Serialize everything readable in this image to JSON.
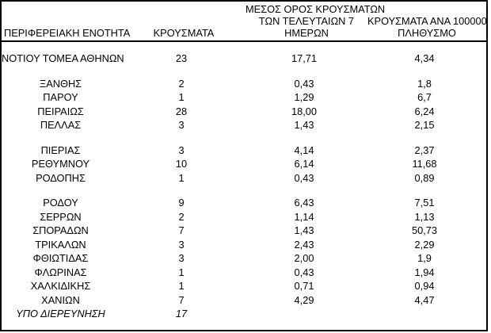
{
  "colors": {
    "background": "#ffffff",
    "text": "#000000",
    "border": "#000000"
  },
  "table": {
    "header": {
      "region": "ΠΕΡΙΦΕΡΕΙΑΚΗ ΕΝΟΤΗΤΑ",
      "cases": "ΚΡΟΥΣΜΑΤΑ",
      "avg7_lines": [
        "ΜΕΣΟΣ ΟΡΟΣ ΚΡΟΥΣΜΑΤΩΝ",
        "ΤΩΝ ΤΕΛΕΥΤΑΙΩΝ 7",
        "ΗΜΕΡΩΝ"
      ],
      "per100k_lines": [
        "ΚΡΟΥΣΜΑΤΑ ΑΝΑ 100000",
        "ΠΛΗΘΥΣΜΟ"
      ]
    },
    "groups": [
      {
        "rows": [
          {
            "region": "ΝΟΤΙΟΥ ΤΟΜΕΑ ΑΘΗΝΩΝ",
            "cases": "23",
            "avg7": "17,71",
            "per100k": "4,34",
            "italic": false
          }
        ]
      },
      {
        "rows": [
          {
            "region": "ΞΑΝΘΗΣ",
            "cases": "2",
            "avg7": "0,43",
            "per100k": "1,8",
            "italic": false
          },
          {
            "region": "ΠΑΡΟΥ",
            "cases": "1",
            "avg7": "1,29",
            "per100k": "6,7",
            "italic": false
          },
          {
            "region": "ΠΕΙΡΑΙΩΣ",
            "cases": "28",
            "avg7": "18,00",
            "per100k": "6,24",
            "italic": false
          },
          {
            "region": "ΠΕΛΛΑΣ",
            "cases": "3",
            "avg7": "1,43",
            "per100k": "2,15",
            "italic": false
          }
        ]
      },
      {
        "rows": [
          {
            "region": "ΠΙΕΡΙΑΣ",
            "cases": "3",
            "avg7": "4,14",
            "per100k": "2,37",
            "italic": false
          },
          {
            "region": "ΡΕΘΥΜΝΟΥ",
            "cases": "10",
            "avg7": "6,14",
            "per100k": "11,68",
            "italic": false
          },
          {
            "region": "ΡΟΔΟΠΗΣ",
            "cases": "1",
            "avg7": "0,43",
            "per100k": "0,89",
            "italic": false
          }
        ]
      },
      {
        "rows": [
          {
            "region": "ΡΟΔΟΥ",
            "cases": "9",
            "avg7": "6,43",
            "per100k": "7,51",
            "italic": false
          },
          {
            "region": "ΣΕΡΡΩΝ",
            "cases": "2",
            "avg7": "1,14",
            "per100k": "1,13",
            "italic": false
          },
          {
            "region": "ΣΠΟΡΑΔΩΝ",
            "cases": "7",
            "avg7": "1,43",
            "per100k": "50,73",
            "italic": false
          },
          {
            "region": "ΤΡΙΚΑΛΩΝ",
            "cases": "3",
            "avg7": "2,43",
            "per100k": "2,29",
            "italic": false
          },
          {
            "region": "ΦΘΙΩΤΙΔΑΣ",
            "cases": "3",
            "avg7": "2,00",
            "per100k": "1,9",
            "italic": false
          },
          {
            "region": "ΦΛΩΡΙΝΑΣ",
            "cases": "1",
            "avg7": "0,43",
            "per100k": "1,94",
            "italic": false
          },
          {
            "region": "ΧΑΛΚΙΔΙΚΗΣ",
            "cases": "1",
            "avg7": "0,71",
            "per100k": "0,94",
            "italic": false
          },
          {
            "region": "ΧΑΝΙΩΝ",
            "cases": "7",
            "avg7": "4,29",
            "per100k": "4,47",
            "italic": false
          },
          {
            "region": "ΥΠΟ ΔΙΕΡΕΥΝΗΣΗ",
            "cases": "17",
            "avg7": "",
            "per100k": "",
            "italic": true
          }
        ]
      }
    ]
  }
}
